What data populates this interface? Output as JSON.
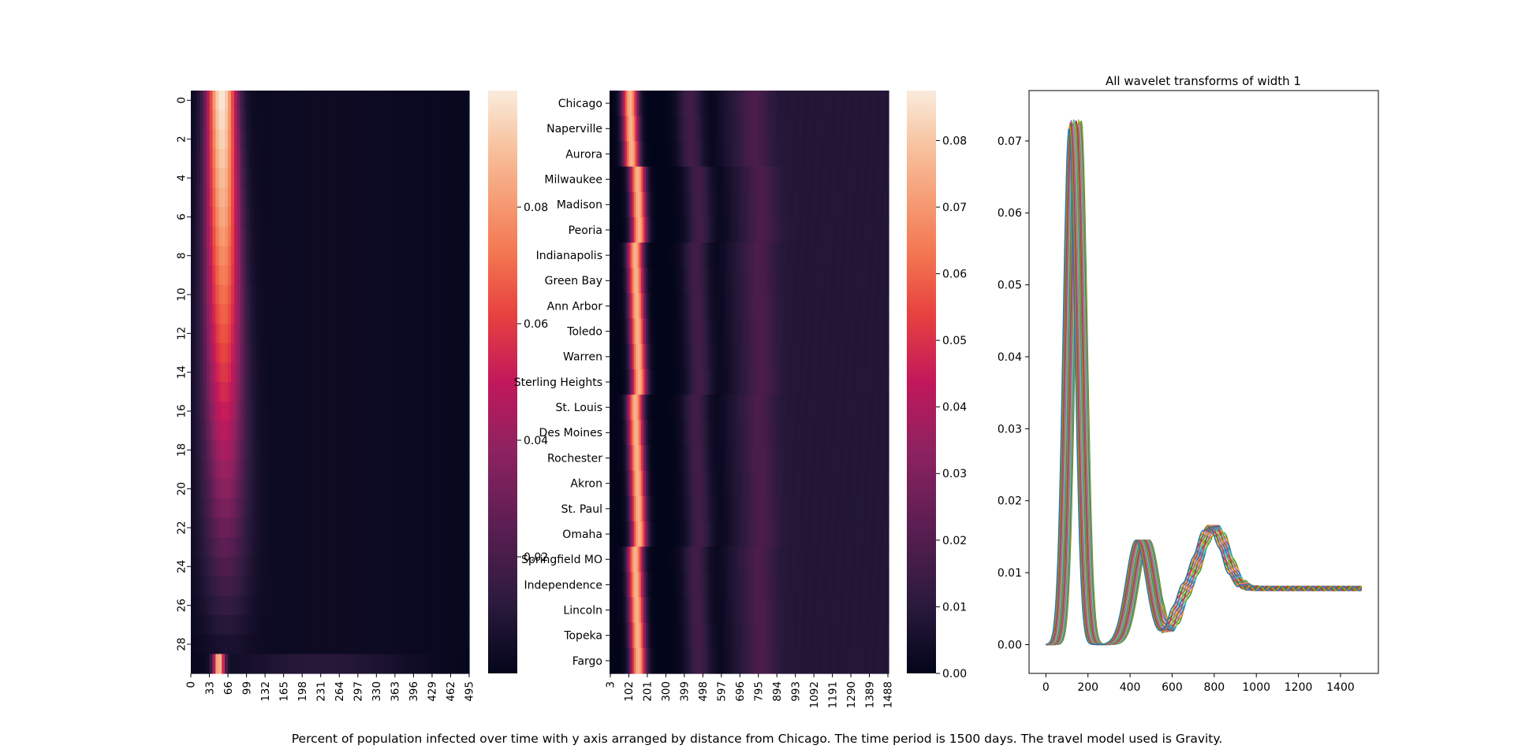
{
  "caption": "Percent of population infected over time with y axis arranged by distance from Chicago. The time period is 1500 days. The travel model used is Gravity.",
  "colors": {
    "colormap": [
      "#03051a",
      "#2b1a3d",
      "#5a1e52",
      "#8d2260",
      "#c2185b",
      "#e8433f",
      "#f37651",
      "#f6a47c",
      "#f8c9a8",
      "#faebdd"
    ],
    "series_palette": [
      "#1f77b4",
      "#ff7f0e",
      "#2ca02c",
      "#d62728",
      "#9467bd",
      "#8c564b",
      "#e377c2",
      "#7f7f7f",
      "#bcbd22",
      "#17becf"
    ]
  },
  "chart_data": [
    {
      "type": "heatmap",
      "rows": 30,
      "columns_days": [
        0,
        495
      ],
      "ytick_labels": [
        "0",
        "2",
        "4",
        "6",
        "8",
        "10",
        "12",
        "14",
        "16",
        "18",
        "20",
        "22",
        "24",
        "26",
        "28"
      ],
      "xtick_labels": [
        "0",
        "33",
        "66",
        "99",
        "132",
        "165",
        "198",
        "231",
        "264",
        "297",
        "330",
        "363",
        "396",
        "429",
        "462",
        "495"
      ],
      "colorbar_ticks": [
        "0.02",
        "0.04",
        "0.06",
        "0.08"
      ],
      "colorbar_range": [
        0,
        0.1
      ]
    },
    {
      "type": "heatmap",
      "rows": 23,
      "columns_days": [
        3,
        1488
      ],
      "ytick_labels": [
        "Chicago",
        "Naperville",
        "Aurora",
        "Milwaukee",
        "Madison",
        "Peoria",
        "Indianapolis",
        "Green Bay",
        "Ann Arbor",
        "Toledo",
        "Warren",
        "Sterling Heights",
        "St. Louis",
        "Des Moines",
        "Rochester",
        "Akron",
        "St. Paul",
        "Omaha",
        "Springfield MO",
        "Independence",
        "Lincoln",
        "Topeka",
        "Fargo"
      ],
      "xtick_labels": [
        "3",
        "102",
        "201",
        "300",
        "399",
        "498",
        "597",
        "696",
        "795",
        "894",
        "993",
        "1092",
        "1191",
        "1290",
        "1389",
        "1488"
      ],
      "colorbar_ticks": [
        "0.00",
        "0.01",
        "0.02",
        "0.03",
        "0.04",
        "0.05",
        "0.06",
        "0.07",
        "0.08"
      ],
      "colorbar_range": [
        0,
        0.0875
      ]
    },
    {
      "type": "line",
      "title": "All wavelet transforms of width 1",
      "xlim": [
        -80,
        1580
      ],
      "ylim": [
        -0.004,
        0.077
      ],
      "xtick_labels": [
        "0",
        "200",
        "400",
        "600",
        "800",
        "1000",
        "1200",
        "1400"
      ],
      "ytick_labels": [
        "0.00",
        "0.01",
        "0.02",
        "0.03",
        "0.04",
        "0.05",
        "0.06",
        "0.07"
      ],
      "n_series": 23,
      "peak_day_range": [
        110,
        168
      ],
      "peak_value_range": [
        0.0718,
        0.073
      ],
      "second_peak_day": 460,
      "second_peak_value": 0.015,
      "third_peak_day": 790,
      "third_peak_value": 0.0095,
      "plateau_value": 0.0083,
      "end_day": 1500
    }
  ]
}
